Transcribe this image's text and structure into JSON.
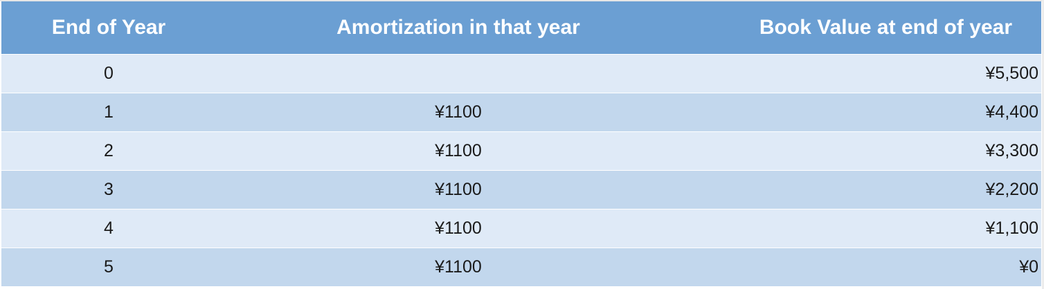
{
  "table": {
    "headers": {
      "year": "End of Year",
      "amortization": "Amortization in that year",
      "book_value": "Book Value at end of year"
    },
    "rows": [
      {
        "year": "0",
        "amortization": "",
        "book_value": "¥5,500"
      },
      {
        "year": "1",
        "amortization": "¥1100",
        "book_value": "¥4,400"
      },
      {
        "year": "2",
        "amortization": "¥1100",
        "book_value": "¥3,300"
      },
      {
        "year": "3",
        "amortization": "¥1100",
        "book_value": "¥2,200"
      },
      {
        "year": "4",
        "amortization": "¥1100",
        "book_value": "¥1,100"
      },
      {
        "year": "5",
        "amortization": "¥1100",
        "book_value": "¥0"
      }
    ]
  },
  "colors": {
    "header_bg": "#6b9fd3",
    "row_light": "#dfeaf7",
    "row_dark": "#c2d7ed"
  }
}
